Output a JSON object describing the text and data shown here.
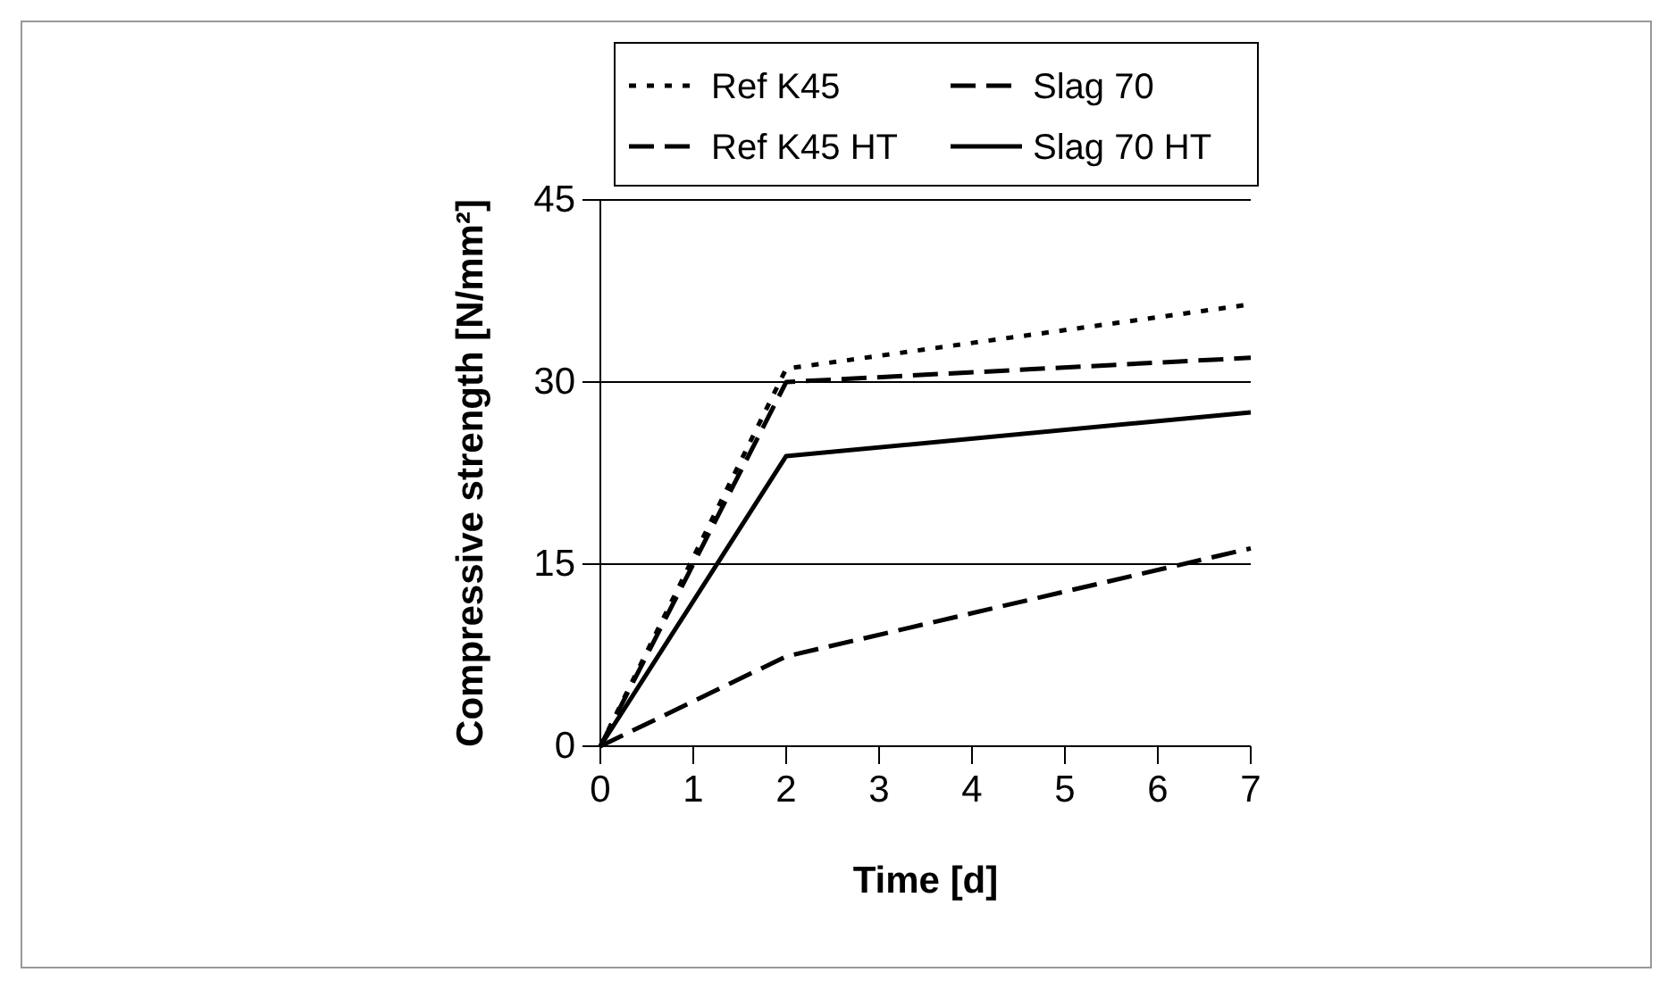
{
  "chart_data": {
    "type": "line",
    "xlabel": "Time [d]",
    "ylabel": "Compressive strength [N/mm²]",
    "x": [
      0,
      2,
      7
    ],
    "xlim": [
      0,
      7
    ],
    "xticks": [
      0,
      1,
      2,
      3,
      4,
      5,
      6,
      7
    ],
    "ylim": [
      0,
      45
    ],
    "yticks": [
      0,
      15,
      30,
      45
    ],
    "grid": "y",
    "legend": "top",
    "marker": "none",
    "series": [
      {
        "name": "Ref K45",
        "color": "#000000",
        "line_style": "dotted",
        "values": [
          0,
          31.1,
          36.4
        ]
      },
      {
        "name": "Slag 70",
        "color": "#000000",
        "line_style": "dashed",
        "values": [
          0,
          7.4,
          16.3
        ]
      },
      {
        "name": "Ref K45 HT",
        "color": "#000000",
        "line_style": "dashed",
        "values": [
          0,
          30,
          32
        ]
      },
      {
        "name": "Slag 70 HT",
        "color": "#000000",
        "line_style": "solid",
        "values": [
          0,
          23.9,
          27.5
        ]
      }
    ]
  }
}
